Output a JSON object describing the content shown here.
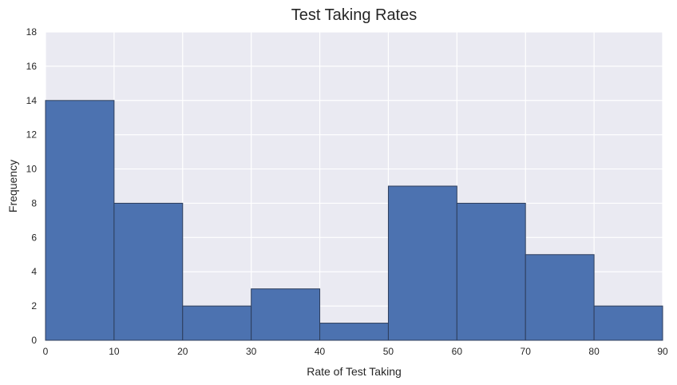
{
  "chart_data": {
    "type": "bar",
    "subtype": "histogram",
    "title": "Test Taking Rates",
    "xlabel": "Rate of Test Taking",
    "ylabel": "Frequency",
    "xlim": [
      0,
      90
    ],
    "ylim": [
      0,
      18
    ],
    "xticks": [
      0,
      10,
      20,
      30,
      40,
      50,
      60,
      70,
      80,
      90
    ],
    "yticks": [
      0,
      2,
      4,
      6,
      8,
      10,
      12,
      14,
      16,
      18
    ],
    "bin_edges": [
      0,
      10,
      20,
      30,
      40,
      50,
      60,
      70,
      80,
      90
    ],
    "values": [
      14,
      8,
      2,
      3,
      1,
      9,
      8,
      5,
      2
    ],
    "grid": true,
    "colors": {
      "background": "#EAEAF2",
      "grid": "#FFFFFF",
      "bar_fill": "#4C72B0",
      "bar_edge": "#2E3E5C",
      "text": "#262626"
    }
  }
}
